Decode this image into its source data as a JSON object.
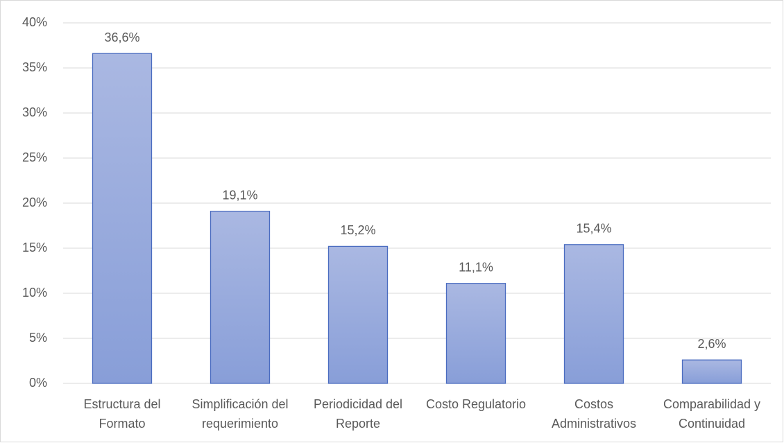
{
  "chart_data": {
    "type": "bar",
    "categories": [
      "Estructura del Formato",
      "Simplificación del requerimiento",
      "Periodicidad del Reporte",
      "Costo Regulatorio",
      "Costos Administrativos",
      "Comparabilidad y Continuidad"
    ],
    "values": [
      36.6,
      19.1,
      15.2,
      11.1,
      15.4,
      2.6
    ],
    "value_labels": [
      "36,6%",
      "19,1%",
      "15,2%",
      "11,1%",
      "15,4%",
      "2,6%"
    ],
    "color": "#8fa3da",
    "ylim": [
      0,
      40
    ],
    "yticks": [
      {
        "value": 0,
        "label": "0%"
      },
      {
        "value": 5,
        "label": "5%"
      },
      {
        "value": 10,
        "label": "10%"
      },
      {
        "value": 15,
        "label": "15%"
      },
      {
        "value": 20,
        "label": "20%"
      },
      {
        "value": 25,
        "label": "25%"
      },
      {
        "value": 30,
        "label": "30%"
      },
      {
        "value": 35,
        "label": "35%"
      },
      {
        "value": 40,
        "label": "40%"
      }
    ],
    "grid": true
  }
}
